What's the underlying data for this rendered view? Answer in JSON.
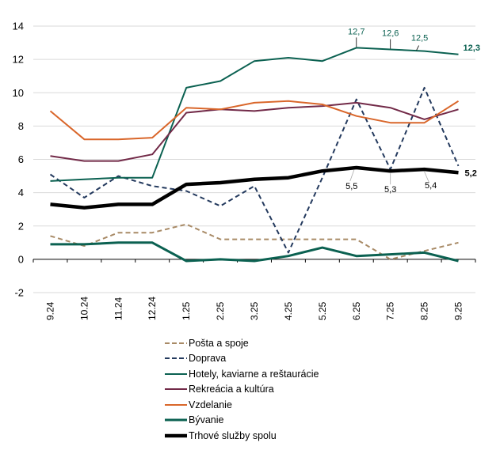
{
  "chart_data": {
    "type": "line",
    "title": "",
    "xlabel": "",
    "ylabel": "",
    "ylim": [
      -2,
      14
    ],
    "yticks": [
      -2,
      0,
      2,
      4,
      6,
      8,
      10,
      12,
      14
    ],
    "grid": true,
    "legend_position": "bottom",
    "categories": [
      "9.24",
      "10.24",
      "11.24",
      "12.24",
      "1.25",
      "2.25",
      "3.25",
      "4.25",
      "5.25",
      "6.25",
      "7.25",
      "8.25",
      "9.25"
    ],
    "series": [
      {
        "name": "Pošta a spoje",
        "color": "#a88a66",
        "style": "dashed",
        "width": "normal",
        "values": [
          1.4,
          0.8,
          1.6,
          1.6,
          2.1,
          1.2,
          1.2,
          1.2,
          1.2,
          1.2,
          0.0,
          0.5,
          1.0
        ]
      },
      {
        "name": "Doprava",
        "color": "#243a5e",
        "style": "dashed",
        "width": "normal",
        "values": [
          5.1,
          3.7,
          5.0,
          4.4,
          4.1,
          3.2,
          4.4,
          0.4,
          4.9,
          9.6,
          5.4,
          10.3,
          5.6
        ]
      },
      {
        "name": "Hotely, kaviarne a reštaurácie",
        "color": "#0b6151",
        "style": "solid",
        "width": "normal",
        "values": [
          4.7,
          4.8,
          4.9,
          4.9,
          10.3,
          10.7,
          11.9,
          12.1,
          11.9,
          12.7,
          12.6,
          12.5,
          12.3
        ],
        "data_labels": [
          {
            "index": 9,
            "text": "12,7"
          },
          {
            "index": 10,
            "text": "12,6"
          },
          {
            "index": 11,
            "text": "12,5"
          },
          {
            "index": 12,
            "text": "12,3"
          }
        ]
      },
      {
        "name": "Rekreácia a kultúra",
        "color": "#722a48",
        "style": "solid",
        "width": "normal",
        "values": [
          6.2,
          5.9,
          5.9,
          6.3,
          8.8,
          9.0,
          8.9,
          9.1,
          9.2,
          9.4,
          9.1,
          8.4,
          9.0
        ]
      },
      {
        "name": "Vzdelanie",
        "color": "#d9662a",
        "style": "solid",
        "width": "normal",
        "values": [
          8.9,
          7.2,
          7.2,
          7.3,
          9.1,
          9.0,
          9.4,
          9.5,
          9.3,
          8.6,
          8.2,
          8.2,
          9.5
        ]
      },
      {
        "name": "Bývanie",
        "color": "#0b6151",
        "style": "solid",
        "width": "thick",
        "values": [
          0.9,
          0.9,
          1.0,
          1.0,
          -0.1,
          0.0,
          -0.1,
          0.2,
          0.7,
          0.2,
          0.3,
          0.4,
          -0.1
        ]
      },
      {
        "name": "Trhové služby spolu",
        "color": "#000000",
        "style": "solid",
        "width": "thickest",
        "values": [
          3.3,
          3.1,
          3.3,
          3.3,
          4.5,
          4.6,
          4.8,
          4.9,
          5.3,
          5.5,
          5.3,
          5.4,
          5.2
        ],
        "data_labels": [
          {
            "index": 9,
            "text": "5,5"
          },
          {
            "index": 10,
            "text": "5,3"
          },
          {
            "index": 11,
            "text": "5,4"
          },
          {
            "index": 12,
            "text": "5,2"
          }
        ]
      }
    ]
  }
}
